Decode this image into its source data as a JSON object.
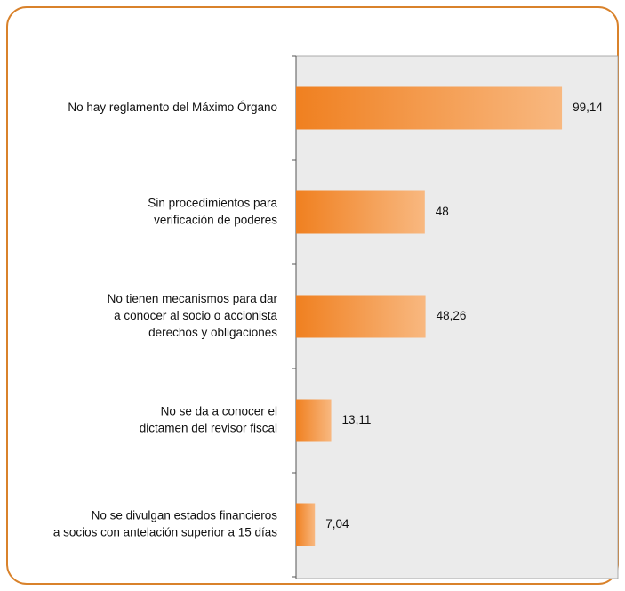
{
  "chart_data": {
    "type": "barh",
    "categories": [
      [
        "No hay reglamento del Máximo Órgano"
      ],
      [
        "Sin procedimientos para",
        "verificación de poderes"
      ],
      [
        "No tienen mecanismos para dar",
        "a conocer al socio o accionista",
        "derechos y obligaciones"
      ],
      [
        "No se da a conocer el",
        "dictamen del revisor fiscal"
      ],
      [
        "No se divulgan estados financieros",
        "a socios con antelación superior a 15 días"
      ]
    ],
    "values": [
      99.14,
      48,
      48.26,
      13.11,
      7.04
    ],
    "value_labels": [
      "99,14",
      "48",
      "48,26",
      "13,11",
      "7,04"
    ],
    "color": "#f08020",
    "xlim": [
      0,
      120
    ]
  }
}
